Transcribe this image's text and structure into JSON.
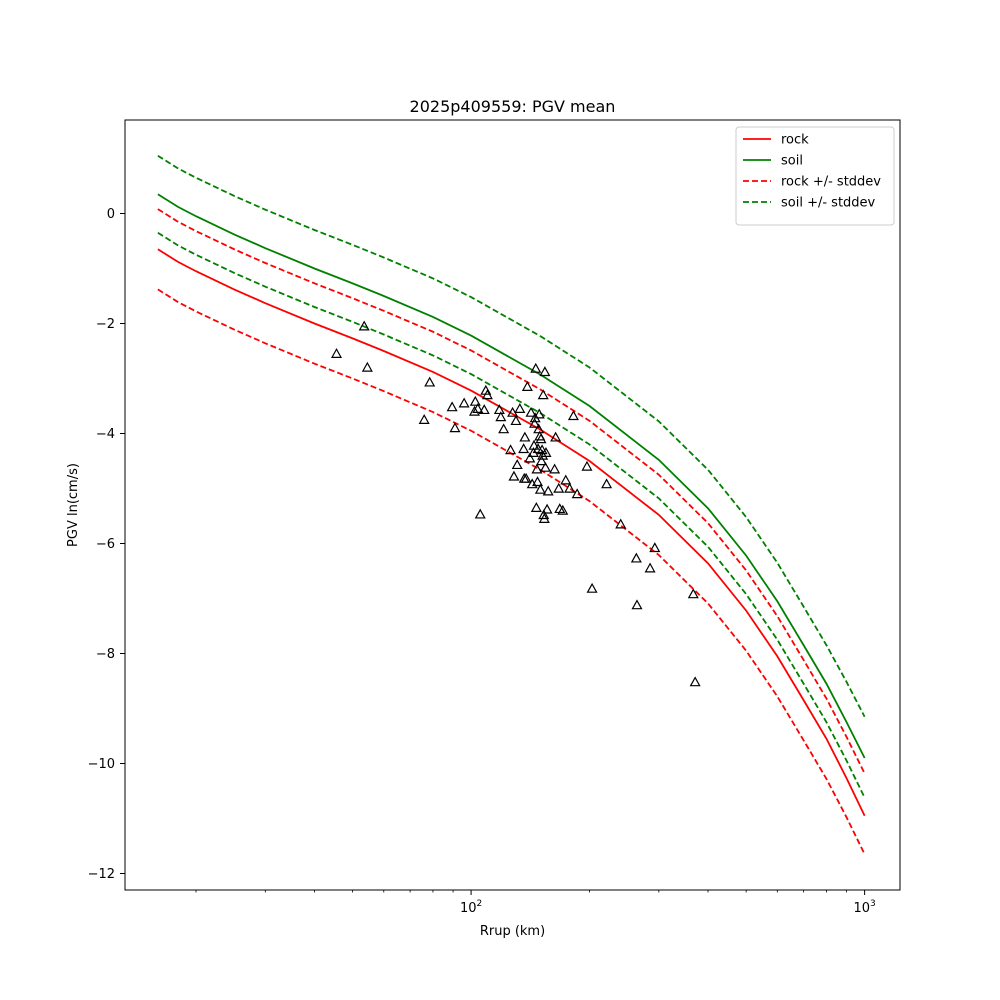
{
  "chart_data": {
    "type": "line",
    "title": "2025p409559: PGV mean",
    "xlabel": "Rrup (km)",
    "ylabel": "PGV ln(cm/s)",
    "xscale": "log",
    "xlim": [
      13.2,
      1230
    ],
    "ylim": [
      -12.3,
      1.7
    ],
    "xticks": [
      {
        "value": 100,
        "base": "10",
        "exp": "2"
      },
      {
        "value": 1000,
        "base": "10",
        "exp": "3"
      }
    ],
    "x_minor_ticks": [
      20,
      30,
      40,
      50,
      60,
      70,
      80,
      90,
      200,
      300,
      400,
      500,
      600,
      700,
      800,
      900
    ],
    "yticks": [
      {
        "value": 0,
        "label": "0"
      },
      {
        "value": -2,
        "label": "−2"
      },
      {
        "value": -4,
        "label": "−4"
      },
      {
        "value": -6,
        "label": "−6"
      },
      {
        "value": -8,
        "label": "−8"
      },
      {
        "value": -10,
        "label": "−10"
      },
      {
        "value": -12,
        "label": "−12"
      }
    ],
    "grid": false,
    "legend_position": "top-right",
    "series": [
      {
        "name": "rock",
        "style": "solid",
        "color": "#ff0000",
        "x": [
          16,
          18,
          20,
          25,
          30,
          40,
          50,
          60,
          80,
          100,
          150,
          200,
          300,
          400,
          500,
          600,
          700,
          800,
          900,
          1000
        ],
        "y": [
          -0.65,
          -0.88,
          -1.05,
          -1.38,
          -1.63,
          -2.0,
          -2.27,
          -2.5,
          -2.88,
          -3.22,
          -3.93,
          -4.5,
          -5.48,
          -6.36,
          -7.22,
          -8.05,
          -8.85,
          -9.55,
          -10.27,
          -10.95
        ]
      },
      {
        "name": "soil",
        "style": "solid",
        "color": "#008000",
        "x": [
          16,
          18,
          20,
          25,
          30,
          40,
          50,
          60,
          80,
          100,
          150,
          200,
          300,
          400,
          500,
          600,
          700,
          800,
          900,
          1000
        ],
        "y": [
          0.35,
          0.12,
          -0.05,
          -0.38,
          -0.63,
          -1.0,
          -1.27,
          -1.5,
          -1.88,
          -2.22,
          -2.93,
          -3.5,
          -4.48,
          -5.36,
          -6.22,
          -7.05,
          -7.85,
          -8.55,
          -9.25,
          -9.9
        ]
      },
      {
        "name": "rock +/- stddev",
        "style": "dashed",
        "color": "#ff0000",
        "x": [
          16,
          18,
          20,
          25,
          30,
          40,
          50,
          60,
          80,
          100,
          150,
          200,
          300,
          400,
          500,
          600,
          700,
          800,
          900,
          1000
        ],
        "y": [
          0.08,
          -0.15,
          -0.32,
          -0.65,
          -0.9,
          -1.27,
          -1.54,
          -1.77,
          -2.15,
          -2.49,
          -3.2,
          -3.77,
          -4.75,
          -5.63,
          -6.49,
          -7.32,
          -8.12,
          -8.82,
          -9.52,
          -10.18
        ]
      },
      {
        "name": "",
        "style": "dashed",
        "color": "#ff0000",
        "x": [
          16,
          18,
          20,
          25,
          30,
          40,
          50,
          60,
          80,
          100,
          150,
          200,
          300,
          400,
          500,
          600,
          700,
          800,
          900,
          1000
        ],
        "y": [
          -1.38,
          -1.61,
          -1.78,
          -2.11,
          -2.36,
          -2.73,
          -3.0,
          -3.23,
          -3.61,
          -3.95,
          -4.66,
          -5.23,
          -6.21,
          -7.09,
          -7.95,
          -8.78,
          -9.58,
          -10.28,
          -10.98,
          -11.65
        ]
      },
      {
        "name": "soil +/- stddev",
        "style": "dashed",
        "color": "#008000",
        "x": [
          16,
          18,
          20,
          25,
          30,
          40,
          50,
          60,
          80,
          100,
          150,
          200,
          300,
          400,
          500,
          600,
          700,
          800,
          900,
          1000
        ],
        "y": [
          1.05,
          0.82,
          0.65,
          0.32,
          0.07,
          -0.3,
          -0.57,
          -0.8,
          -1.18,
          -1.52,
          -2.23,
          -2.8,
          -3.78,
          -4.66,
          -5.52,
          -6.35,
          -7.15,
          -7.85,
          -8.52,
          -9.15
        ]
      },
      {
        "name": "",
        "style": "dashed",
        "color": "#008000",
        "x": [
          16,
          18,
          20,
          25,
          30,
          40,
          50,
          60,
          80,
          100,
          150,
          200,
          300,
          400,
          500,
          600,
          700,
          800,
          900,
          1000
        ],
        "y": [
          -0.35,
          -0.58,
          -0.75,
          -1.08,
          -1.33,
          -1.7,
          -1.97,
          -2.2,
          -2.58,
          -2.92,
          -3.63,
          -4.2,
          -5.18,
          -6.06,
          -6.92,
          -7.75,
          -8.55,
          -9.25,
          -9.95,
          -10.62
        ]
      }
    ],
    "observations": {
      "marker": "triangle-open",
      "color": "#000000",
      "points": [
        [
          45.5,
          -2.55
        ],
        [
          53.5,
          -2.05
        ],
        [
          54.5,
          -2.8
        ],
        [
          76,
          -3.75
        ],
        [
          78.5,
          -3.07
        ],
        [
          89.5,
          -3.52
        ],
        [
          91,
          -3.9
        ],
        [
          96,
          -3.45
        ],
        [
          102,
          -3.6
        ],
        [
          102.5,
          -3.42
        ],
        [
          104,
          -3.55
        ],
        [
          105.5,
          -5.47
        ],
        [
          108,
          -3.57
        ],
        [
          109,
          -3.22
        ],
        [
          110,
          -3.3
        ],
        [
          118,
          -3.57
        ],
        [
          119,
          -3.7
        ],
        [
          121,
          -3.92
        ],
        [
          126,
          -4.3
        ],
        [
          127.5,
          -3.62
        ],
        [
          128.5,
          -4.78
        ],
        [
          130,
          -3.77
        ],
        [
          131,
          -4.57
        ],
        [
          133,
          -3.55
        ],
        [
          136,
          -4.28
        ],
        [
          136.5,
          -4.82
        ],
        [
          137,
          -4.07
        ],
        [
          138,
          -4.82
        ],
        [
          139,
          -3.15
        ],
        [
          141,
          -4.45
        ],
        [
          142,
          -3.62
        ],
        [
          143,
          -4.92
        ],
        [
          144,
          -4.35
        ],
        [
          144.5,
          -4.22
        ],
        [
          145,
          -3.82
        ],
        [
          145.5,
          -3.72
        ],
        [
          146,
          -2.82
        ],
        [
          146.5,
          -5.35
        ],
        [
          147,
          -4.65
        ],
        [
          147.5,
          -4.88
        ],
        [
          148,
          -4.28
        ],
        [
          148.5,
          -3.92
        ],
        [
          149,
          -3.65
        ],
        [
          149.5,
          -4.05
        ],
        [
          150,
          -5.02
        ],
        [
          150.5,
          -4.1
        ],
        [
          151,
          -4.5
        ],
        [
          151.5,
          -4.3
        ],
        [
          152,
          -4.4
        ],
        [
          152.5,
          -3.3
        ],
        [
          153,
          -5.48
        ],
        [
          153.5,
          -5.55
        ],
        [
          154,
          -2.88
        ],
        [
          154.5,
          -4.62
        ],
        [
          155,
          -4.35
        ],
        [
          156,
          -5.38
        ],
        [
          157,
          -5.05
        ],
        [
          163,
          -4.65
        ],
        [
          164,
          -4.07
        ],
        [
          167,
          -5.0
        ],
        [
          168,
          -5.37
        ],
        [
          171,
          -5.4
        ],
        [
          174,
          -4.85
        ],
        [
          178,
          -5.0
        ],
        [
          182,
          -3.68
        ],
        [
          186,
          -5.1
        ],
        [
          197,
          -4.6
        ],
        [
          203,
          -6.82
        ],
        [
          221,
          -4.92
        ],
        [
          240,
          -5.65
        ],
        [
          263,
          -6.27
        ],
        [
          264,
          -7.12
        ],
        [
          285,
          -6.45
        ],
        [
          293,
          -6.08
        ],
        [
          367,
          -6.92
        ],
        [
          371,
          -8.52
        ]
      ]
    }
  }
}
